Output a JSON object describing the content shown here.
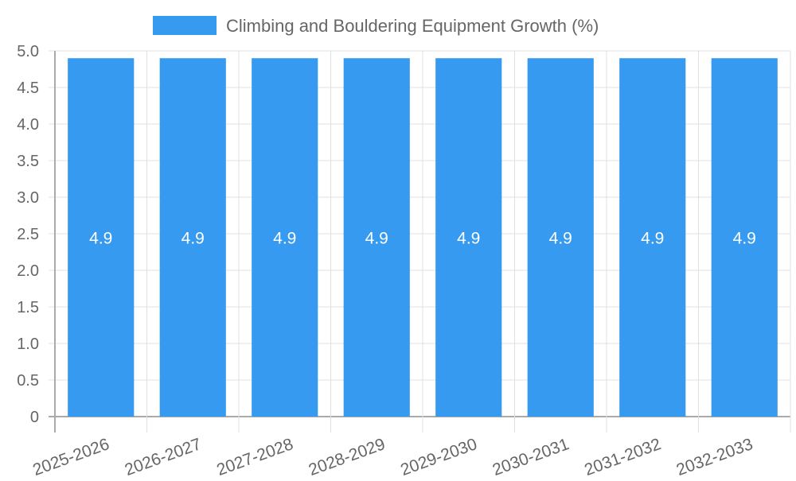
{
  "chart_data": {
    "type": "bar",
    "title": "",
    "legend": {
      "label": "Climbing and Bouldering Equipment Growth (%)",
      "placement": "top-center"
    },
    "categories": [
      "2025-2026",
      "2026-2027",
      "2027-2028",
      "2028-2029",
      "2029-2030",
      "2030-2031",
      "2031-2032",
      "2032-2033"
    ],
    "series": [
      {
        "name": "Climbing and Bouldering Equipment Growth (%)",
        "values": [
          4.9,
          4.9,
          4.9,
          4.9,
          4.9,
          4.9,
          4.9,
          4.9
        ],
        "color": "#369af0"
      }
    ],
    "data_labels": [
      "4.9",
      "4.9",
      "4.9",
      "4.9",
      "4.9",
      "4.9",
      "4.9",
      "4.9"
    ],
    "yticks": [
      "0",
      "0.5",
      "1.0",
      "1.5",
      "2.0",
      "2.5",
      "3.0",
      "3.5",
      "4.0",
      "4.5",
      "5.0"
    ],
    "ylim": [
      0,
      5
    ],
    "xlabel": "",
    "ylabel": "",
    "grid": true
  }
}
